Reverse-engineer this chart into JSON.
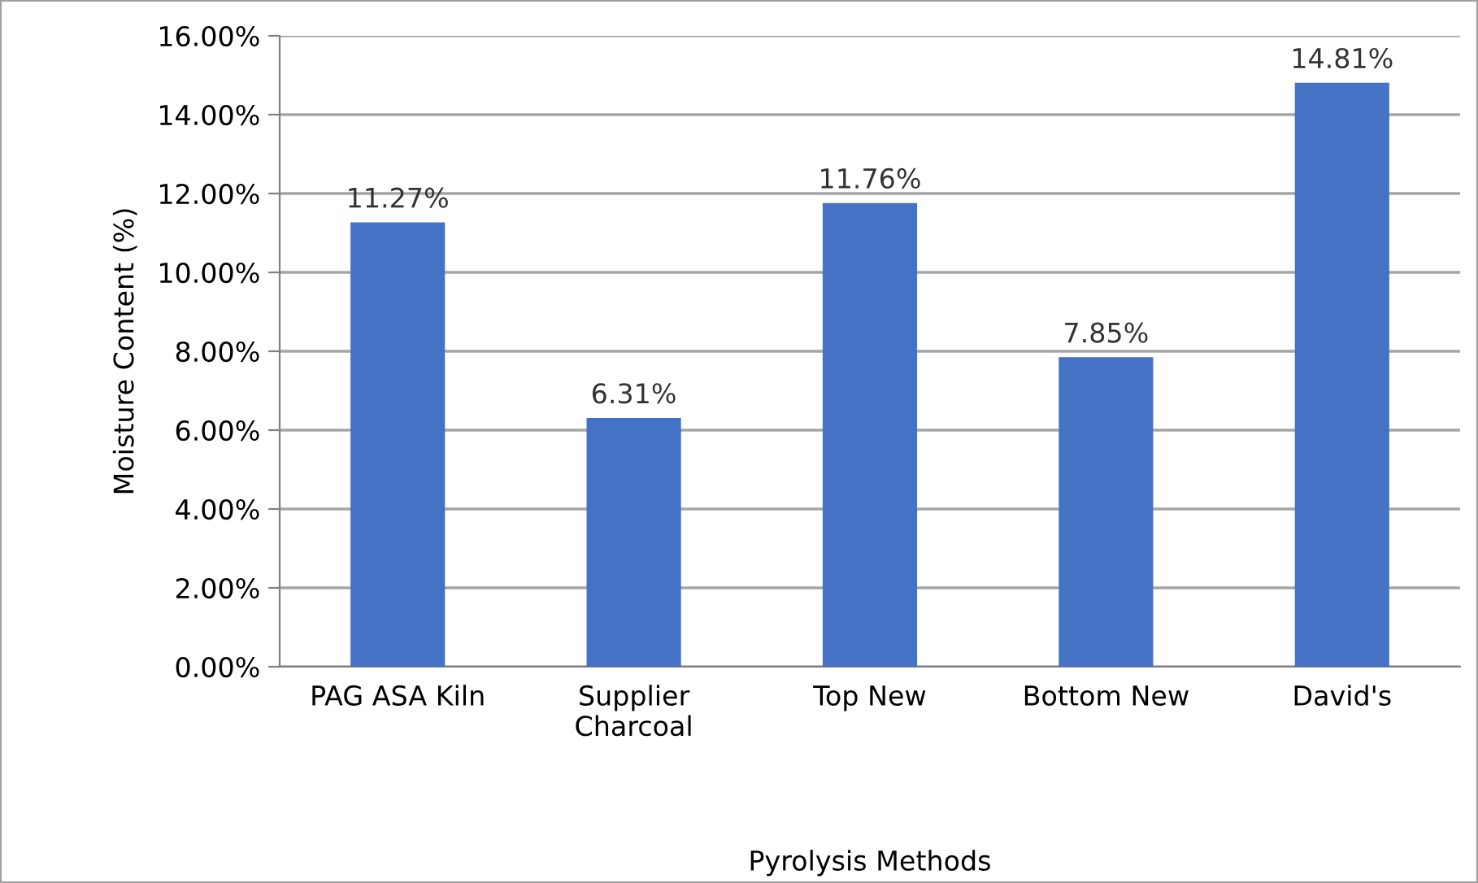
{
  "chart_data": {
    "type": "bar",
    "xlabel": "Pyrolysis Methods",
    "ylabel": "Moisture Content (%)",
    "categories": [
      "PAG ASA Kiln",
      "Supplier\nCharcoal",
      "Top New",
      "Bottom New",
      "David's"
    ],
    "values": [
      11.27,
      6.31,
      11.76,
      7.85,
      14.81
    ],
    "value_labels": [
      "11.27%",
      "6.31%",
      "11.76%",
      "7.85%",
      "14.81%"
    ],
    "color": "#4472c4",
    "ylim": [
      0,
      16
    ],
    "yticks": [
      {
        "value": 0,
        "label": "0.00%"
      },
      {
        "value": 2,
        "label": "2.00%"
      },
      {
        "value": 4,
        "label": "4.00%"
      },
      {
        "value": 6,
        "label": "6.00%"
      },
      {
        "value": 8,
        "label": "8.00%"
      },
      {
        "value": 10,
        "label": "10.00%"
      },
      {
        "value": 12,
        "label": "12.00%"
      },
      {
        "value": 14,
        "label": "14.00%"
      },
      {
        "value": 16,
        "label": "16.00%"
      }
    ],
    "grid": "y",
    "legend": false
  }
}
